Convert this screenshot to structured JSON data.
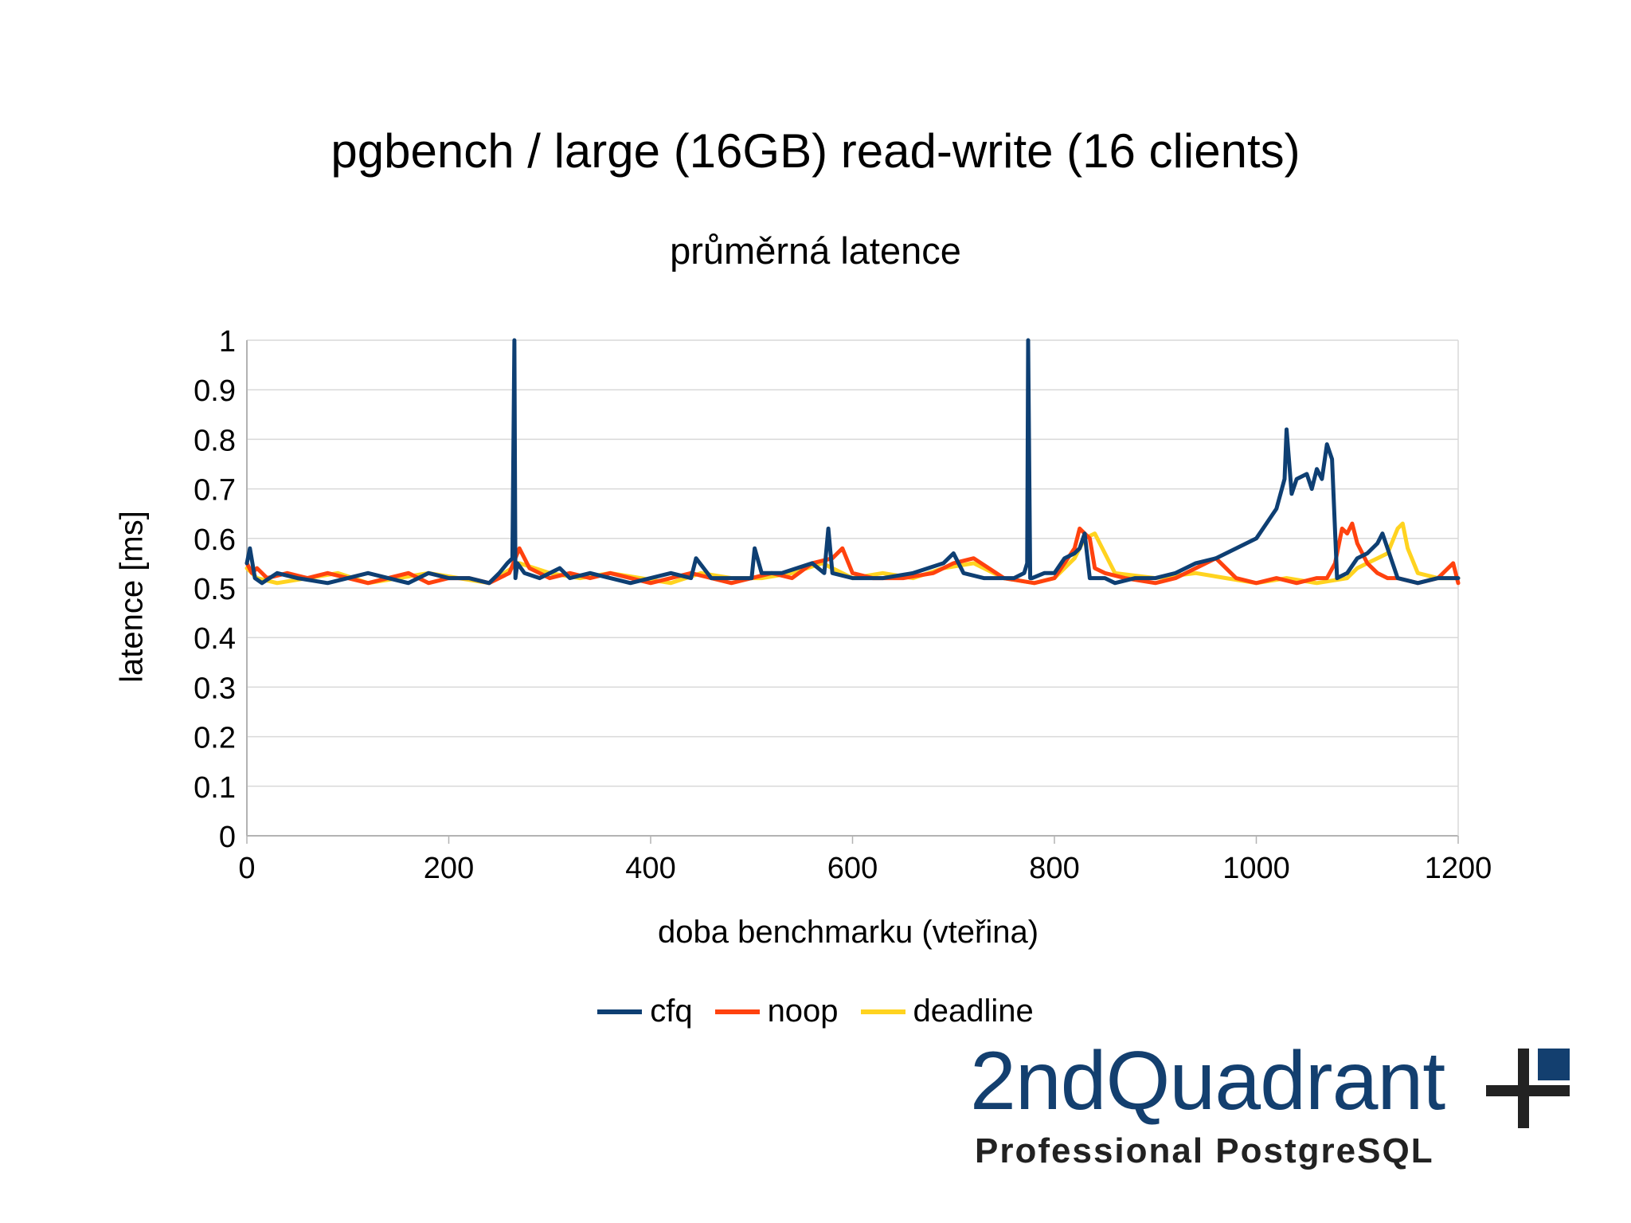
{
  "chart_data": {
    "type": "line",
    "title": "pgbench / large (16GB) read-write (16 clients)",
    "subtitle": "průměrná latence",
    "xlabel": "doba benchmarku (vteřina)",
    "ylabel": "latence [ms]",
    "xlim": [
      0,
      1200
    ],
    "ylim": [
      0,
      1
    ],
    "xticks": [
      "0",
      "200",
      "400",
      "600",
      "800",
      "1000",
      "1200"
    ],
    "yticks": [
      "0",
      "0.1",
      "0.2",
      "0.3",
      "0.4",
      "0.5",
      "0.6",
      "0.7",
      "0.8",
      "0.9",
      "1"
    ],
    "grid": true,
    "legend_position": "bottom",
    "series": [
      {
        "name": "cfq",
        "color": "#0e3f73",
        "x": [
          0,
          3,
          8,
          15,
          30,
          50,
          80,
          100,
          120,
          140,
          160,
          180,
          200,
          220,
          240,
          250,
          258,
          263,
          265,
          266,
          268,
          275,
          290,
          310,
          320,
          340,
          360,
          380,
          400,
          420,
          440,
          445,
          460,
          480,
          500,
          503,
          510,
          530,
          560,
          572,
          576,
          580,
          600,
          630,
          660,
          690,
          700,
          710,
          730,
          760,
          770,
          773,
          774,
          776,
          778,
          790,
          800,
          810,
          820,
          825,
          830,
          835,
          850,
          860,
          880,
          900,
          920,
          940,
          960,
          980,
          1000,
          1010,
          1020,
          1028,
          1030,
          1035,
          1040,
          1050,
          1055,
          1060,
          1065,
          1070,
          1075,
          1080,
          1090,
          1100,
          1110,
          1120,
          1125,
          1130,
          1140,
          1160,
          1180,
          1200
        ],
        "y": [
          0.55,
          0.58,
          0.52,
          0.51,
          0.53,
          0.52,
          0.51,
          0.52,
          0.53,
          0.52,
          0.51,
          0.53,
          0.52,
          0.52,
          0.51,
          0.53,
          0.55,
          0.56,
          1.0,
          0.52,
          0.55,
          0.53,
          0.52,
          0.54,
          0.52,
          0.53,
          0.52,
          0.51,
          0.52,
          0.53,
          0.52,
          0.56,
          0.52,
          0.52,
          0.52,
          0.58,
          0.53,
          0.53,
          0.55,
          0.53,
          0.62,
          0.53,
          0.52,
          0.52,
          0.53,
          0.55,
          0.57,
          0.53,
          0.52,
          0.52,
          0.53,
          0.55,
          1.0,
          0.52,
          0.52,
          0.53,
          0.53,
          0.56,
          0.57,
          0.58,
          0.61,
          0.52,
          0.52,
          0.51,
          0.52,
          0.52,
          0.53,
          0.55,
          0.56,
          0.58,
          0.6,
          0.63,
          0.66,
          0.72,
          0.82,
          0.69,
          0.72,
          0.73,
          0.7,
          0.74,
          0.72,
          0.79,
          0.76,
          0.52,
          0.53,
          0.56,
          0.57,
          0.59,
          0.61,
          0.58,
          0.52,
          0.51,
          0.52,
          0.52
        ]
      },
      {
        "name": "noop",
        "color": "#ff420e",
        "x": [
          0,
          5,
          10,
          20,
          40,
          60,
          80,
          100,
          120,
          140,
          160,
          180,
          200,
          220,
          240,
          260,
          270,
          280,
          300,
          320,
          340,
          360,
          380,
          400,
          420,
          440,
          460,
          480,
          500,
          520,
          540,
          560,
          580,
          590,
          600,
          620,
          650,
          680,
          700,
          720,
          750,
          780,
          800,
          810,
          820,
          825,
          830,
          835,
          840,
          850,
          870,
          900,
          920,
          940,
          960,
          980,
          1000,
          1020,
          1040,
          1060,
          1070,
          1078,
          1085,
          1090,
          1095,
          1100,
          1110,
          1120,
          1130,
          1140,
          1160,
          1180,
          1195,
          1200
        ],
        "y": [
          0.55,
          0.53,
          0.54,
          0.52,
          0.53,
          0.52,
          0.53,
          0.52,
          0.51,
          0.52,
          0.53,
          0.51,
          0.52,
          0.52,
          0.51,
          0.53,
          0.58,
          0.54,
          0.52,
          0.53,
          0.52,
          0.53,
          0.52,
          0.51,
          0.52,
          0.53,
          0.52,
          0.51,
          0.52,
          0.53,
          0.52,
          0.55,
          0.56,
          0.58,
          0.53,
          0.52,
          0.52,
          0.53,
          0.55,
          0.56,
          0.52,
          0.51,
          0.52,
          0.55,
          0.58,
          0.62,
          0.61,
          0.6,
          0.54,
          0.53,
          0.52,
          0.51,
          0.52,
          0.54,
          0.56,
          0.52,
          0.51,
          0.52,
          0.51,
          0.52,
          0.52,
          0.55,
          0.62,
          0.61,
          0.63,
          0.59,
          0.55,
          0.53,
          0.52,
          0.52,
          0.51,
          0.52,
          0.55,
          0.51
        ]
      },
      {
        "name": "deadline",
        "color": "#ffd320",
        "x": [
          0,
          10,
          30,
          60,
          90,
          120,
          150,
          180,
          210,
          240,
          270,
          300,
          330,
          360,
          390,
          420,
          450,
          480,
          510,
          540,
          570,
          600,
          630,
          660,
          690,
          720,
          750,
          780,
          800,
          810,
          820,
          830,
          840,
          860,
          900,
          940,
          970,
          1000,
          1030,
          1060,
          1090,
          1100,
          1110,
          1120,
          1130,
          1140,
          1145,
          1150,
          1160,
          1180,
          1200
        ],
        "y": [
          0.54,
          0.52,
          0.51,
          0.52,
          0.53,
          0.51,
          0.52,
          0.53,
          0.52,
          0.51,
          0.55,
          0.53,
          0.52,
          0.53,
          0.52,
          0.51,
          0.53,
          0.52,
          0.52,
          0.53,
          0.55,
          0.52,
          0.53,
          0.52,
          0.54,
          0.55,
          0.52,
          0.51,
          0.52,
          0.54,
          0.56,
          0.6,
          0.61,
          0.53,
          0.52,
          0.53,
          0.52,
          0.51,
          0.52,
          0.51,
          0.52,
          0.54,
          0.55,
          0.56,
          0.57,
          0.62,
          0.63,
          0.58,
          0.53,
          0.52,
          0.52
        ]
      }
    ]
  },
  "logo": {
    "name": "2ndQuadrant",
    "tagline": "Professional PostgreSQL"
  }
}
